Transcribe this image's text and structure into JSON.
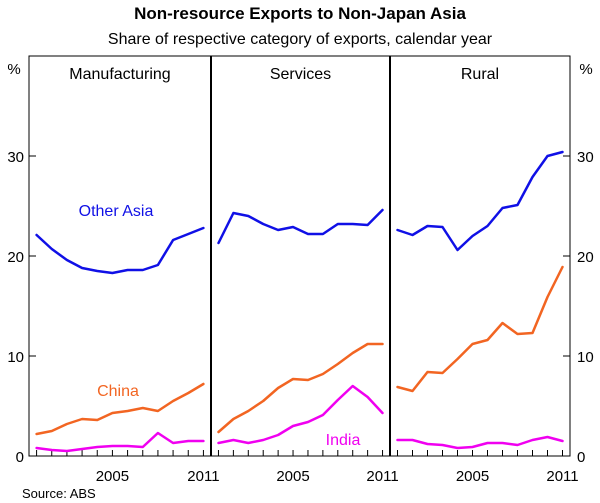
{
  "chart_data": {
    "type": "line",
    "title": "Non-resource Exports to Non-Japan Asia",
    "subtitle": "Share of respective category of exports, calendar year",
    "unit": "%",
    "ylim": [
      0,
      40
    ],
    "yticks": [
      0,
      10,
      20,
      30
    ],
    "xlim": [
      1999.5,
      2011.5
    ],
    "xtick_labels": [
      "2005",
      "2011"
    ],
    "source": "Source: ABS",
    "colors": {
      "Other Asia": "#1010e6",
      "China": "#f26522",
      "India": "#f000f0"
    },
    "panels": [
      {
        "name": "Manufacturing",
        "x": [
          2000,
          2001,
          2002,
          2003,
          2004,
          2005,
          2006,
          2007,
          2008,
          2009,
          2010,
          2011
        ],
        "series": [
          {
            "name": "Other Asia",
            "values": [
              22.1,
              20.7,
              19.6,
              18.8,
              18.5,
              18.3,
              18.6,
              18.6,
              19.1,
              21.6,
              22.2,
              22.8
            ]
          },
          {
            "name": "China",
            "values": [
              2.2,
              2.5,
              3.2,
              3.7,
              3.6,
              4.3,
              4.5,
              4.8,
              4.5,
              5.5,
              6.3,
              7.2
            ]
          },
          {
            "name": "India",
            "values": [
              0.8,
              0.6,
              0.5,
              0.7,
              0.9,
              1.0,
              1.0,
              0.9,
              2.3,
              1.3,
              1.5,
              1.5
            ]
          }
        ],
        "labels": [
          {
            "series": "Other Asia",
            "text": "Other Asia"
          },
          {
            "series": "China",
            "text": "China"
          }
        ]
      },
      {
        "name": "Services",
        "x": [
          2000,
          2001,
          2002,
          2003,
          2004,
          2005,
          2006,
          2007,
          2008,
          2009,
          2010,
          2011
        ],
        "series": [
          {
            "name": "Other Asia",
            "values": [
              21.3,
              24.3,
              24.0,
              23.2,
              22.6,
              22.9,
              22.2,
              22.2,
              23.2,
              23.2,
              23.1,
              24.6
            ]
          },
          {
            "name": "China",
            "values": [
              2.4,
              3.7,
              4.5,
              5.5,
              6.8,
              7.7,
              7.6,
              8.2,
              9.2,
              10.3,
              11.2,
              11.2
            ]
          },
          {
            "name": "India",
            "values": [
              1.3,
              1.6,
              1.3,
              1.6,
              2.1,
              3.0,
              3.4,
              4.1,
              5.6,
              7.0,
              5.9,
              4.3
            ]
          }
        ],
        "labels": [
          {
            "series": "India",
            "text": "India"
          }
        ]
      },
      {
        "name": "Rural",
        "x": [
          2000,
          2001,
          2002,
          2003,
          2004,
          2005,
          2006,
          2007,
          2008,
          2009,
          2010,
          2011
        ],
        "series": [
          {
            "name": "Other Asia",
            "values": [
              22.6,
              22.1,
              23.0,
              22.9,
              20.6,
              22.0,
              23.0,
              24.8,
              25.1,
              27.9,
              30.0,
              30.4
            ]
          },
          {
            "name": "China",
            "values": [
              6.9,
              6.5,
              8.4,
              8.3,
              9.7,
              11.2,
              11.6,
              13.3,
              12.2,
              12.3,
              15.9,
              18.9
            ]
          },
          {
            "name": "India",
            "values": [
              1.6,
              1.6,
              1.2,
              1.1,
              0.8,
              0.9,
              1.3,
              1.3,
              1.1,
              1.6,
              1.9,
              1.5
            ]
          }
        ],
        "labels": []
      }
    ]
  }
}
